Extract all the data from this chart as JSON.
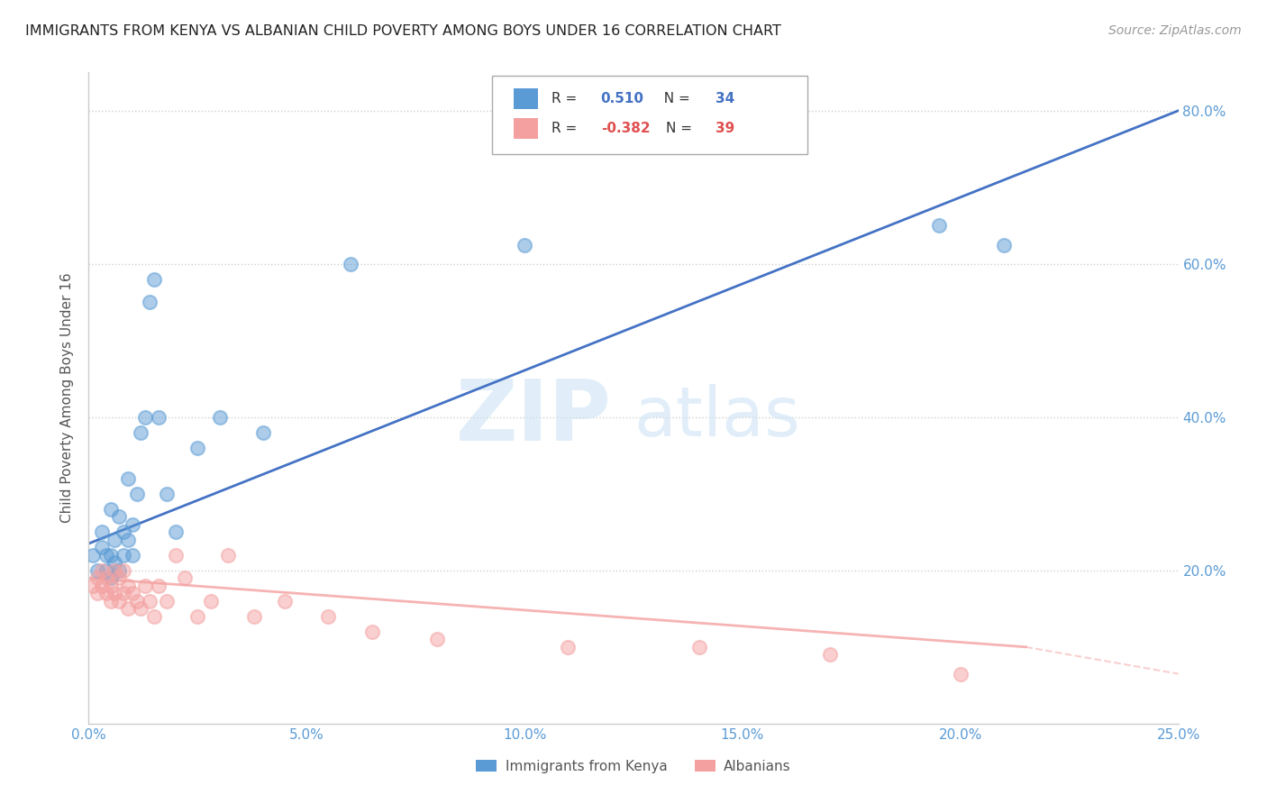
{
  "title": "IMMIGRANTS FROM KENYA VS ALBANIAN CHILD POVERTY AMONG BOYS UNDER 16 CORRELATION CHART",
  "source": "Source: ZipAtlas.com",
  "ylabel": "Child Poverty Among Boys Under 16",
  "xlim": [
    0.0,
    0.25
  ],
  "ylim": [
    0.0,
    0.85
  ],
  "xticks": [
    0.0,
    0.05,
    0.1,
    0.15,
    0.2,
    0.25
  ],
  "xticklabels": [
    "0.0%",
    "5.0%",
    "10.0%",
    "15.0%",
    "20.0%",
    "25.0%"
  ],
  "yticks": [
    0.0,
    0.2,
    0.4,
    0.6,
    0.8
  ],
  "yticklabels": [
    "",
    "20.0%",
    "40.0%",
    "60.0%",
    "80.0%"
  ],
  "kenya_color": "#5b9bd5",
  "albania_color": "#f4a0a0",
  "kenya_line_color": "#4472c4",
  "albania_line_color": "#e8808080",
  "kenya_R": "0.510",
  "kenya_N": "34",
  "albania_R": "-0.382",
  "albania_N": "39",
  "kenya_scatter_x": [
    0.001,
    0.002,
    0.003,
    0.003,
    0.004,
    0.004,
    0.005,
    0.005,
    0.005,
    0.006,
    0.006,
    0.007,
    0.007,
    0.008,
    0.008,
    0.009,
    0.009,
    0.01,
    0.01,
    0.011,
    0.012,
    0.013,
    0.014,
    0.015,
    0.016,
    0.018,
    0.02,
    0.025,
    0.03,
    0.04,
    0.06,
    0.1,
    0.195,
    0.21
  ],
  "kenya_scatter_y": [
    0.22,
    0.2,
    0.23,
    0.25,
    0.2,
    0.22,
    0.19,
    0.22,
    0.28,
    0.21,
    0.24,
    0.2,
    0.27,
    0.22,
    0.25,
    0.24,
    0.32,
    0.22,
    0.26,
    0.3,
    0.38,
    0.4,
    0.55,
    0.58,
    0.4,
    0.3,
    0.25,
    0.36,
    0.4,
    0.38,
    0.6,
    0.625,
    0.65,
    0.625
  ],
  "albania_scatter_x": [
    0.001,
    0.002,
    0.002,
    0.003,
    0.003,
    0.004,
    0.004,
    0.005,
    0.005,
    0.006,
    0.006,
    0.007,
    0.007,
    0.008,
    0.008,
    0.009,
    0.009,
    0.01,
    0.011,
    0.012,
    0.013,
    0.014,
    0.015,
    0.016,
    0.018,
    0.02,
    0.022,
    0.025,
    0.028,
    0.032,
    0.038,
    0.045,
    0.055,
    0.065,
    0.08,
    0.11,
    0.14,
    0.17,
    0.2
  ],
  "albania_scatter_y": [
    0.18,
    0.17,
    0.19,
    0.18,
    0.2,
    0.17,
    0.19,
    0.16,
    0.18,
    0.17,
    0.2,
    0.16,
    0.19,
    0.17,
    0.2,
    0.15,
    0.18,
    0.17,
    0.16,
    0.15,
    0.18,
    0.16,
    0.14,
    0.18,
    0.16,
    0.22,
    0.19,
    0.14,
    0.16,
    0.22,
    0.14,
    0.16,
    0.14,
    0.12,
    0.11,
    0.1,
    0.1,
    0.09,
    0.065
  ],
  "kenya_line_x": [
    0.0,
    0.25
  ],
  "kenya_line_y": [
    0.235,
    0.8
  ],
  "albania_line_x": [
    0.0,
    0.215
  ],
  "albania_line_y": [
    0.19,
    0.1
  ],
  "watermark_zip": "ZIP",
  "watermark_atlas": "atlas",
  "background_color": "#ffffff",
  "grid_color": "#d0d0d0",
  "tick_color": "#5b9bd5",
  "label_color": "#5b9bd5",
  "spine_color": "#cccccc"
}
